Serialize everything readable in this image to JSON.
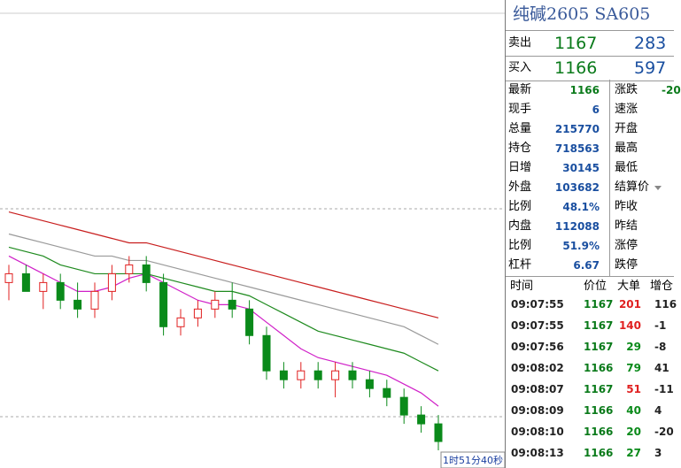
{
  "chart_data": {
    "type": "candlestick",
    "ylim": [
      1162,
      1215
    ],
    "up_color": "#e02020",
    "down_color": "#0a8a1a",
    "candles": [
      [
        1183,
        1185,
        1181,
        1184
      ],
      [
        1184,
        1185,
        1182,
        1182
      ],
      [
        1182,
        1184,
        1180,
        1183
      ],
      [
        1183,
        1184,
        1180,
        1181
      ],
      [
        1181,
        1183,
        1179,
        1180
      ],
      [
        1180,
        1183,
        1179,
        1182
      ],
      [
        1182,
        1185,
        1181,
        1184
      ],
      [
        1184,
        1186,
        1183,
        1185
      ],
      [
        1185,
        1186,
        1182,
        1183
      ],
      [
        1183,
        1184,
        1177,
        1178
      ],
      [
        1178,
        1180,
        1177,
        1179
      ],
      [
        1179,
        1181,
        1178,
        1180
      ],
      [
        1180,
        1182,
        1179,
        1181
      ],
      [
        1181,
        1183,
        1179,
        1180
      ],
      [
        1180,
        1181,
        1176,
        1177
      ],
      [
        1177,
        1178,
        1172,
        1173
      ],
      [
        1173,
        1174,
        1171,
        1172
      ],
      [
        1172,
        1174,
        1171,
        1173
      ],
      [
        1173,
        1174,
        1171,
        1172
      ],
      [
        1172,
        1174,
        1170,
        1173
      ],
      [
        1173,
        1174,
        1171,
        1172
      ],
      [
        1172,
        1173,
        1170,
        1171
      ],
      [
        1171,
        1172,
        1169,
        1170
      ],
      [
        1170,
        1171,
        1167,
        1168
      ],
      [
        1168,
        1169,
        1166,
        1167
      ],
      [
        1167,
        1168,
        1164,
        1165
      ]
    ],
    "lines": [
      {
        "color": "#c81e1e",
        "values": [
          1191,
          1190.5,
          1190,
          1189.5,
          1189,
          1188.5,
          1188,
          1187.5,
          1187.5,
          1187,
          1186.5,
          1186,
          1185.5,
          1185,
          1184.5,
          1184,
          1183.5,
          1183,
          1182.5,
          1182,
          1181.5,
          1181,
          1180.5,
          1180,
          1179.5,
          1179
        ]
      },
      {
        "color": "#9a9a9a",
        "values": [
          1188.5,
          1188,
          1187.5,
          1187,
          1186.5,
          1186,
          1186,
          1185.5,
          1185.5,
          1185,
          1184.5,
          1184,
          1183.5,
          1183,
          1182.5,
          1182,
          1181.5,
          1181,
          1180.5,
          1180,
          1179.5,
          1179,
          1178.5,
          1178,
          1177,
          1176
        ]
      },
      {
        "color": "#1e8a1e",
        "values": [
          1187,
          1186.5,
          1186,
          1185,
          1184.5,
          1184,
          1184,
          1184,
          1184,
          1183.5,
          1183,
          1182.5,
          1182,
          1182,
          1181.5,
          1180.5,
          1179.5,
          1178.5,
          1177.5,
          1177,
          1176.5,
          1176,
          1175.5,
          1175,
          1174,
          1173
        ]
      },
      {
        "color": "#d020c8",
        "values": [
          1186,
          1185,
          1184,
          1183,
          1182,
          1182,
          1182.5,
          1183.5,
          1184,
          1183,
          1182,
          1181,
          1180.5,
          1180.5,
          1180,
          1178.5,
          1177,
          1175.5,
          1174.5,
          1174,
          1173.5,
          1173,
          1172.5,
          1171.5,
          1170.5,
          1169
        ]
      }
    ],
    "time_label": "1时51分40秒"
  },
  "quote": {
    "title": "纯碱2605  SA605",
    "orders": [
      {
        "label": "卖出",
        "price": 1167,
        "volume": 283
      },
      {
        "label": "买入",
        "price": 1166,
        "volume": 597
      }
    ],
    "stats": [
      {
        "label": "最新",
        "value": 1166,
        "label2": "涨跌",
        "value2": -20
      },
      {
        "label": "现手",
        "value": 6,
        "label2": "速涨"
      },
      {
        "label": "总量",
        "value": 215770,
        "label2": "开盘"
      },
      {
        "label": "持仓",
        "value": 718563,
        "label2": "最高"
      },
      {
        "label": "日增",
        "value": 30145,
        "label2": "最低"
      },
      {
        "label": "外盘",
        "value": 103682,
        "label2": "结算价"
      },
      {
        "label": "比例",
        "value": "48.1%",
        "label2": "昨收"
      },
      {
        "label": "内盘",
        "value": 112088,
        "label2": "昨结"
      },
      {
        "label": "比例",
        "value": "51.9%",
        "label2": "涨停"
      },
      {
        "label": "杠杆",
        "value": 6.67,
        "label2": "跌停"
      }
    ],
    "tick_headers": [
      "时间",
      "价位",
      "大单",
      "增仓"
    ],
    "ticks": [
      {
        "time": "09:07:55",
        "price": 1167,
        "size": 201,
        "size_color": "#e02020",
        "change": 116
      },
      {
        "time": "09:07:55",
        "price": 1167,
        "size": 140,
        "size_color": "#e02020",
        "change": -1
      },
      {
        "time": "09:07:56",
        "price": 1167,
        "size": 29,
        "size_color": "#0a8a1a",
        "change": -8
      },
      {
        "time": "09:08:02",
        "price": 1166,
        "size": 79,
        "size_color": "#0a8a1a",
        "change": 41
      },
      {
        "time": "09:08:07",
        "price": 1167,
        "size": 51,
        "size_color": "#e02020",
        "change": -11
      },
      {
        "time": "09:08:09",
        "price": 1166,
        "size": 40,
        "size_color": "#0a8a1a",
        "change": 4
      },
      {
        "time": "09:08:10",
        "price": 1166,
        "size": 20,
        "size_color": "#0a8a1a",
        "change": -20
      },
      {
        "time": "09:08:13",
        "price": 1166,
        "size": 27,
        "size_color": "#0a8a1a",
        "change": 3
      }
    ]
  }
}
